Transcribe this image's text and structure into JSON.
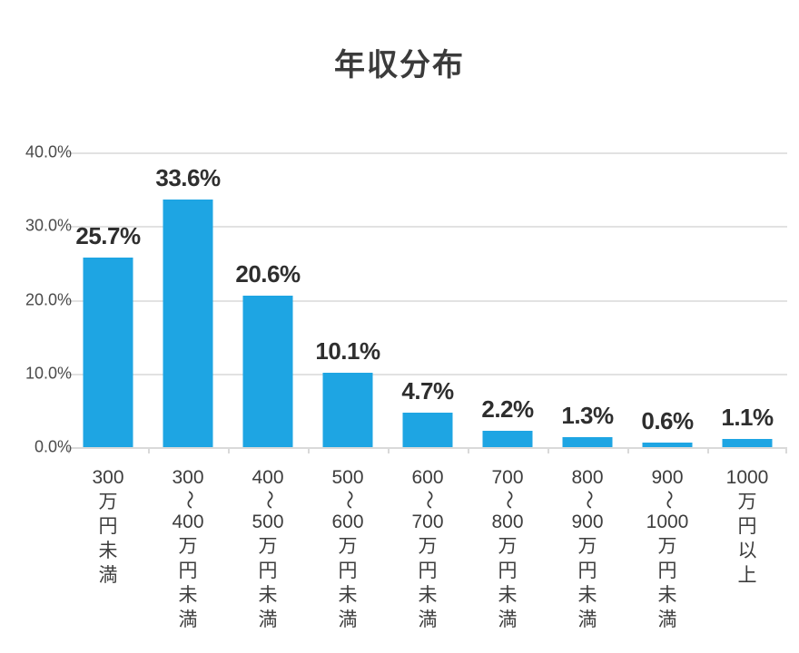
{
  "chart_data": {
    "type": "bar",
    "title": "年収分布",
    "categories": [
      "300万円未満",
      "300〜400万円未満",
      "400〜500万円未満",
      "500〜600万円未満",
      "600〜700万円未満",
      "700〜800万円未満",
      "800〜900万円未満",
      "900〜1000万円未満",
      "1000万円以上"
    ],
    "category_lines": [
      [
        "300",
        "万",
        "円",
        "未",
        "満"
      ],
      [
        "300",
        "〜",
        "400",
        "万",
        "円",
        "未",
        "満"
      ],
      [
        "400",
        "〜",
        "500",
        "万",
        "円",
        "未",
        "満"
      ],
      [
        "500",
        "〜",
        "600",
        "万",
        "円",
        "未",
        "満"
      ],
      [
        "600",
        "〜",
        "700",
        "万",
        "円",
        "未",
        "満"
      ],
      [
        "700",
        "〜",
        "800",
        "万",
        "円",
        "未",
        "満"
      ],
      [
        "800",
        "〜",
        "900",
        "万",
        "円",
        "未",
        "満"
      ],
      [
        "900",
        "〜",
        "1000",
        "万",
        "円",
        "未",
        "満"
      ],
      [
        "1000",
        "万",
        "円",
        "以",
        "上"
      ]
    ],
    "values": [
      25.7,
      33.6,
      20.6,
      10.1,
      4.7,
      2.2,
      1.3,
      0.6,
      1.1
    ],
    "data_labels": [
      "25.7%",
      "33.6%",
      "20.6%",
      "10.1%",
      "4.7%",
      "2.2%",
      "1.3%",
      "0.6%",
      "1.1%"
    ],
    "xlabel": "",
    "ylabel": "",
    "y_axis": {
      "min": 0,
      "max": 40,
      "tick_step": 10,
      "ticks": [
        "40.0%",
        "30.0%",
        "20.0%",
        "10.0%",
        "0.0%"
      ]
    },
    "grid": "horizontal",
    "legend": "none",
    "colors": {
      "bar": "#1ea5e3",
      "grid": "#e2e2e2",
      "axis": "#d9d9d9",
      "title": "#3b3b3b",
      "data_label": "#2e2e2e",
      "y_tick_label": "#4a4a4a",
      "category_label": "#3d3d3d",
      "background": "#ffffff"
    }
  }
}
